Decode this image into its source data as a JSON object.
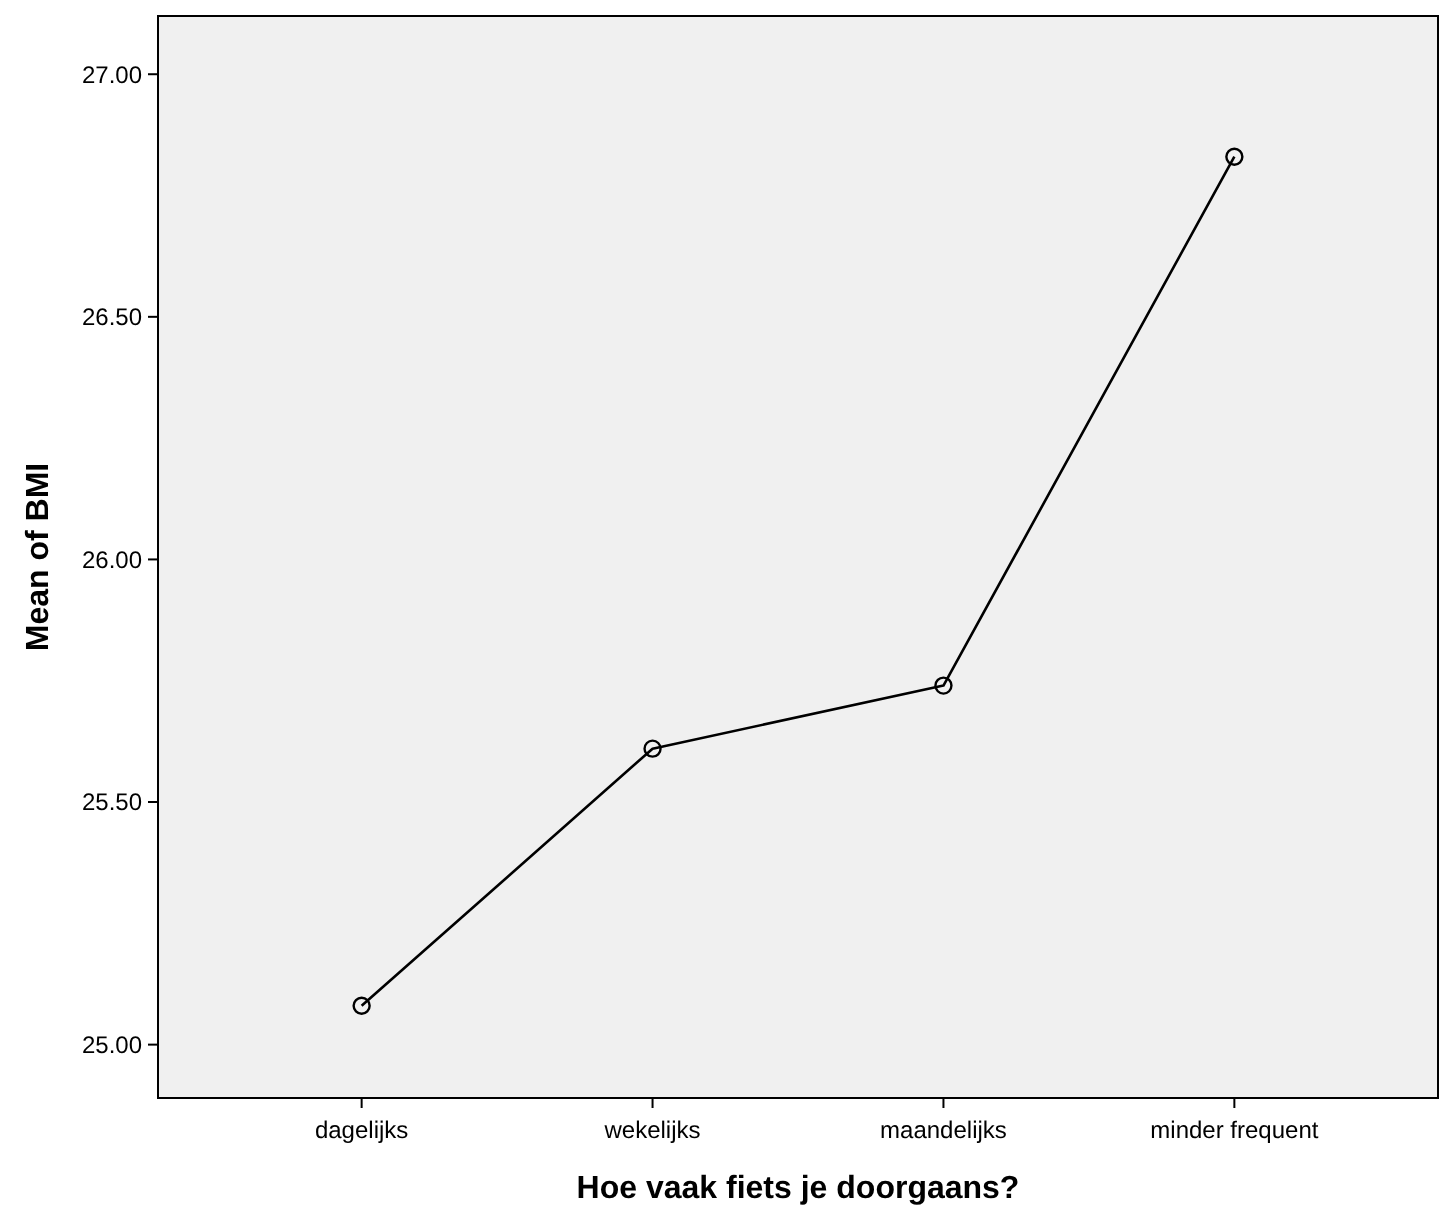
{
  "chart_data": {
    "type": "line",
    "xlabel": "Hoe vaak fiets je doorgaans?",
    "ylabel": "Mean of BMI",
    "categories": [
      "dagelijks",
      "wekelijks",
      "maandelijks",
      "minder frequent"
    ],
    "values": [
      25.08,
      25.61,
      25.74,
      26.83
    ],
    "color": "#000000",
    "marker": "circle",
    "line_style": "solid",
    "ylim": [
      24.89,
      27.12
    ],
    "yticks": [
      {
        "value": 25,
        "label": "25.00"
      },
      {
        "value": 25.5,
        "label": "25.50"
      },
      {
        "value": 26,
        "label": "26.00"
      },
      {
        "value": 26.5,
        "label": "26.50"
      },
      {
        "value": 27,
        "label": "27.00"
      }
    ]
  }
}
